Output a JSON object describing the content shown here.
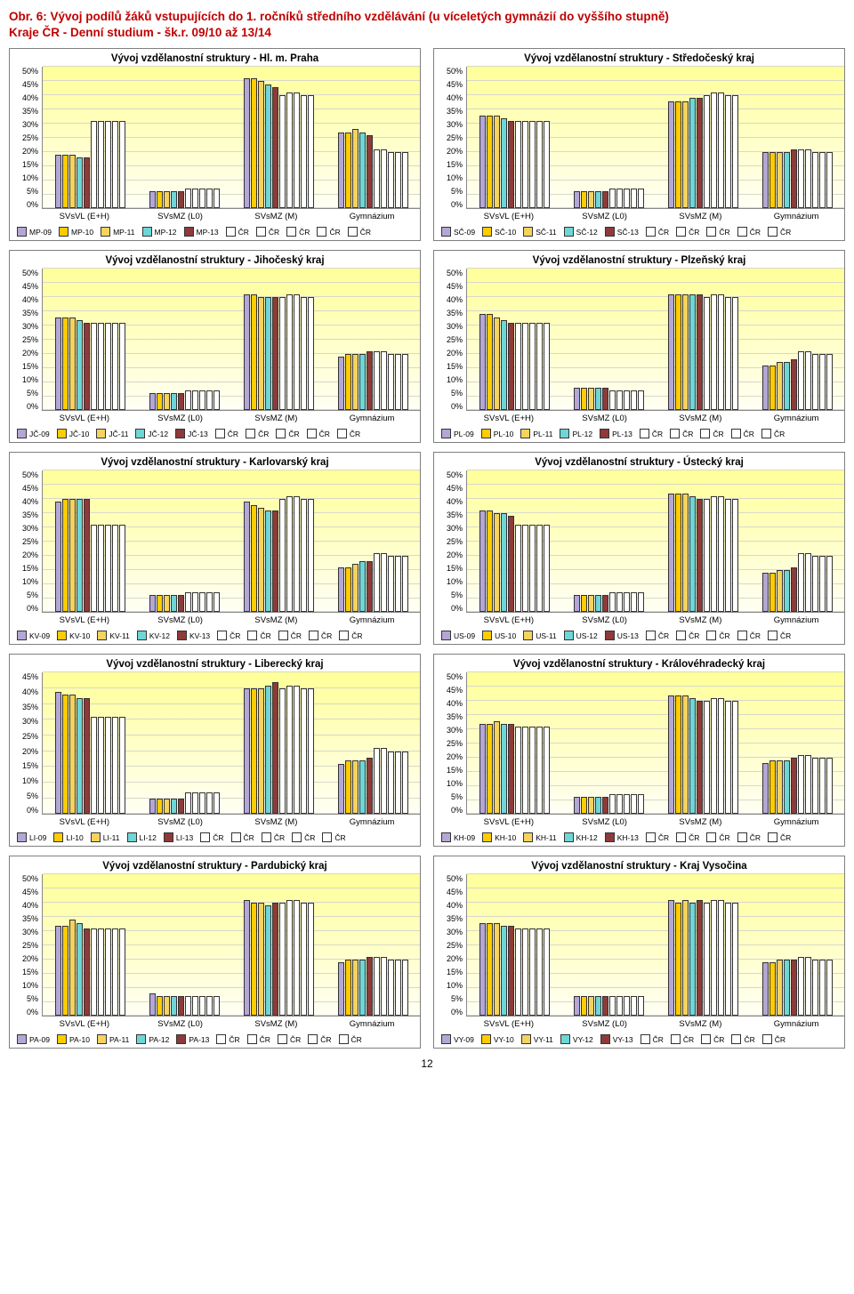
{
  "page_title_lines": [
    "Obr. 6: Vývoj podílů žáků vstupujících do 1. ročníků středního vzdělávání (u víceletých gymnázií do vyššího stupně)",
    "Kraje ČR - Denní studium - šk.r. 09/10 až 13/14"
  ],
  "page_number": "12",
  "palette": {
    "c1": "#b4a7d6",
    "c2": "#ffcc00",
    "c3": "#f4d35e",
    "c4": "#6ed6d6",
    "c5": "#8e3a3a"
  },
  "common": {
    "ymax": 50,
    "ytick": 5,
    "ylabels": [
      "50%",
      "45%",
      "40%",
      "35%",
      "30%",
      "25%",
      "20%",
      "15%",
      "10%",
      "5%",
      "0%"
    ],
    "xlabels": [
      "SVsVL (E+H)",
      "SVsMZ (L0)",
      "SVsMZ (M)",
      "Gymnázium"
    ],
    "cr_label": "ČR"
  },
  "charts": [
    {
      "title": "Vývoj vzdělanostní struktury - Hl. m. Praha",
      "prefix": "MP",
      "years": [
        "09",
        "10",
        "11",
        "12",
        "13"
      ],
      "data": [
        [
          19,
          19,
          19,
          18,
          18
        ],
        [
          6,
          6,
          6,
          6,
          6
        ],
        [
          46,
          46,
          45,
          44,
          43
        ],
        [
          27,
          27,
          28,
          27,
          26
        ]
      ],
      "cr": [
        [
          31,
          31,
          31,
          31,
          31
        ],
        [
          7,
          7,
          7,
          7,
          7
        ],
        [
          40,
          41,
          41,
          40,
          40
        ],
        [
          21,
          21,
          20,
          20,
          20
        ]
      ]
    },
    {
      "title": "Vývoj vzdělanostní struktury - Středočeský kraj",
      "prefix": "SČ",
      "years": [
        "09",
        "10",
        "11",
        "12",
        "13"
      ],
      "data": [
        [
          33,
          33,
          33,
          32,
          31
        ],
        [
          6,
          6,
          6,
          6,
          6
        ],
        [
          38,
          38,
          38,
          39,
          39
        ],
        [
          20,
          20,
          20,
          20,
          21
        ]
      ],
      "cr": [
        [
          31,
          31,
          31,
          31,
          31
        ],
        [
          7,
          7,
          7,
          7,
          7
        ],
        [
          40,
          41,
          41,
          40,
          40
        ],
        [
          21,
          21,
          20,
          20,
          20
        ]
      ]
    },
    {
      "title": "Vývoj vzdělanostní struktury - Jihočeský kraj",
      "prefix": "JČ",
      "years": [
        "09",
        "10",
        "11",
        "12",
        "13"
      ],
      "data": [
        [
          33,
          33,
          33,
          32,
          31
        ],
        [
          6,
          6,
          6,
          6,
          6
        ],
        [
          41,
          41,
          40,
          40,
          40
        ],
        [
          19,
          20,
          20,
          20,
          21
        ]
      ],
      "cr": [
        [
          31,
          31,
          31,
          31,
          31
        ],
        [
          7,
          7,
          7,
          7,
          7
        ],
        [
          40,
          41,
          41,
          40,
          40
        ],
        [
          21,
          21,
          20,
          20,
          20
        ]
      ]
    },
    {
      "title": "Vývoj vzdělanostní struktury - Plzeňský kraj",
      "prefix": "PL",
      "years": [
        "09",
        "10",
        "11",
        "12",
        "13"
      ],
      "data": [
        [
          34,
          34,
          33,
          32,
          31
        ],
        [
          8,
          8,
          8,
          8,
          8
        ],
        [
          41,
          41,
          41,
          41,
          41
        ],
        [
          16,
          16,
          17,
          17,
          18
        ]
      ],
      "cr": [
        [
          31,
          31,
          31,
          31,
          31
        ],
        [
          7,
          7,
          7,
          7,
          7
        ],
        [
          40,
          41,
          41,
          40,
          40
        ],
        [
          21,
          21,
          20,
          20,
          20
        ]
      ]
    },
    {
      "title": "Vývoj vzdělanostní struktury - Karlovarský kraj",
      "prefix": "KV",
      "years": [
        "09",
        "10",
        "11",
        "12",
        "13"
      ],
      "data": [
        [
          39,
          40,
          40,
          40,
          40
        ],
        [
          6,
          6,
          6,
          6,
          6
        ],
        [
          39,
          38,
          37,
          36,
          36
        ],
        [
          16,
          16,
          17,
          18,
          18
        ]
      ],
      "cr": [
        [
          31,
          31,
          31,
          31,
          31
        ],
        [
          7,
          7,
          7,
          7,
          7
        ],
        [
          40,
          41,
          41,
          40,
          40
        ],
        [
          21,
          21,
          20,
          20,
          20
        ]
      ]
    },
    {
      "title": "Vývoj vzdělanostní struktury - Ústecký kraj",
      "prefix": "US",
      "years": [
        "09",
        "10",
        "11",
        "12",
        "13"
      ],
      "data": [
        [
          36,
          36,
          35,
          35,
          34
        ],
        [
          6,
          6,
          6,
          6,
          6
        ],
        [
          42,
          42,
          42,
          41,
          40
        ],
        [
          14,
          14,
          15,
          15,
          16
        ]
      ],
      "cr": [
        [
          31,
          31,
          31,
          31,
          31
        ],
        [
          7,
          7,
          7,
          7,
          7
        ],
        [
          40,
          41,
          41,
          40,
          40
        ],
        [
          21,
          21,
          20,
          20,
          20
        ]
      ]
    },
    {
      "title": "Vývoj vzdělanostní struktury - Liberecký kraj",
      "prefix": "LI",
      "years": [
        "09",
        "10",
        "11",
        "12",
        "13"
      ],
      "data": [
        [
          39,
          38,
          38,
          37,
          37
        ],
        [
          5,
          5,
          5,
          5,
          5
        ],
        [
          40,
          40,
          40,
          41,
          42
        ],
        [
          16,
          17,
          17,
          17,
          18
        ]
      ],
      "cr": [
        [
          31,
          31,
          31,
          31,
          31
        ],
        [
          7,
          7,
          7,
          7,
          7
        ],
        [
          40,
          41,
          41,
          40,
          40
        ],
        [
          21,
          21,
          20,
          20,
          20
        ]
      ],
      "ymax": 45,
      "ylabels": [
        "45%",
        "40%",
        "35%",
        "30%",
        "25%",
        "20%",
        "15%",
        "10%",
        "5%",
        "0%"
      ]
    },
    {
      "title": "Vývoj vzdělanostní struktury - Královéhradecký kraj",
      "prefix": "KH",
      "years": [
        "09",
        "10",
        "11",
        "12",
        "13"
      ],
      "data": [
        [
          32,
          32,
          33,
          32,
          32
        ],
        [
          6,
          6,
          6,
          6,
          6
        ],
        [
          42,
          42,
          42,
          41,
          40
        ],
        [
          18,
          19,
          19,
          19,
          20
        ]
      ],
      "cr": [
        [
          31,
          31,
          31,
          31,
          31
        ],
        [
          7,
          7,
          7,
          7,
          7
        ],
        [
          40,
          41,
          41,
          40,
          40
        ],
        [
          21,
          21,
          20,
          20,
          20
        ]
      ]
    },
    {
      "title": "Vývoj vzdělanostní struktury - Pardubický kraj",
      "prefix": "PA",
      "years": [
        "09",
        "10",
        "11",
        "12",
        "13"
      ],
      "data": [
        [
          32,
          32,
          34,
          33,
          31
        ],
        [
          8,
          7,
          7,
          7,
          7
        ],
        [
          41,
          40,
          40,
          39,
          40
        ],
        [
          19,
          20,
          20,
          20,
          21
        ]
      ],
      "cr": [
        [
          31,
          31,
          31,
          31,
          31
        ],
        [
          7,
          7,
          7,
          7,
          7
        ],
        [
          40,
          41,
          41,
          40,
          40
        ],
        [
          21,
          21,
          20,
          20,
          20
        ]
      ]
    },
    {
      "title": "Vývoj vzdělanostní struktury - Kraj Vysočina",
      "prefix": "VY",
      "years": [
        "09",
        "10",
        "11",
        "12",
        "13"
      ],
      "data": [
        [
          33,
          33,
          33,
          32,
          32
        ],
        [
          7,
          7,
          7,
          7,
          7
        ],
        [
          41,
          40,
          41,
          40,
          41
        ],
        [
          19,
          19,
          20,
          20,
          20
        ]
      ],
      "cr": [
        [
          31,
          31,
          31,
          31,
          31
        ],
        [
          7,
          7,
          7,
          7,
          7
        ],
        [
          40,
          41,
          41,
          40,
          40
        ],
        [
          21,
          21,
          20,
          20,
          20
        ]
      ]
    }
  ]
}
